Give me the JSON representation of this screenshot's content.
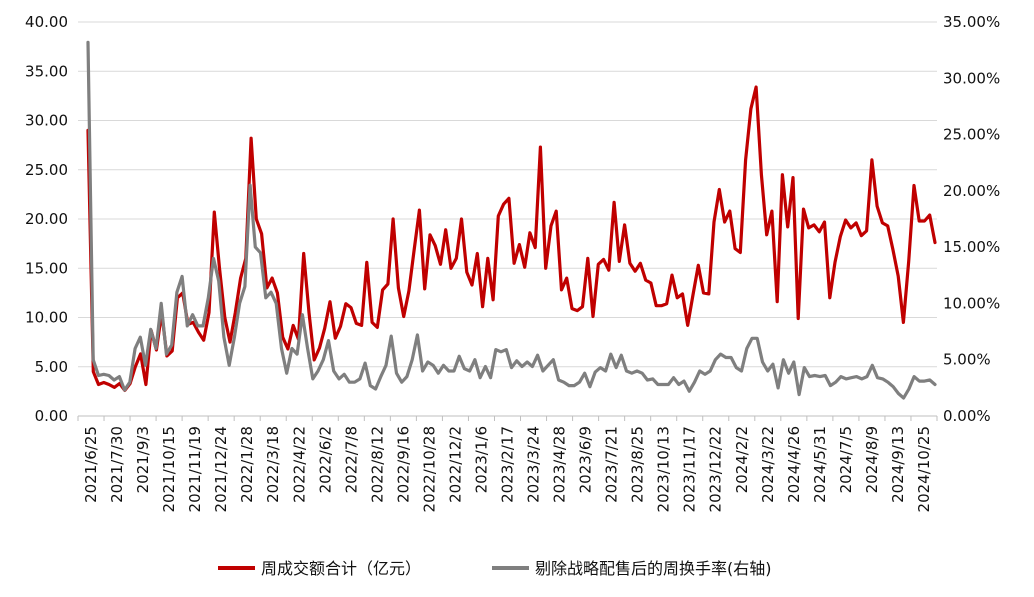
{
  "chart_data": {
    "type": "line",
    "x_tick_labels": [
      "2021/6/25",
      "2021/7/30",
      "2021/9/3",
      "2021/10/15",
      "2021/11/19",
      "2021/12/24",
      "2022/1/28",
      "2022/3/18",
      "2022/4/22",
      "2022/6/2",
      "2022/7/8",
      "2022/8/12",
      "2022/9/16",
      "2022/10/28",
      "2022/12/2",
      "2023/1/6",
      "2023/2/17",
      "2023/3/24",
      "2023/4/28",
      "2023/6/9",
      "2023/7/21",
      "2023/8/25",
      "2023/10/13",
      "2023/11/17",
      "2023/12/22",
      "2024/2/2",
      "2024/3/22",
      "2024/4/26",
      "2024/5/31",
      "2024/7/5",
      "2024/8/9",
      "2024/9/13",
      "2024/10/25"
    ],
    "left_axis": {
      "min": 0,
      "max": 40,
      "step": 5,
      "tick_labels": [
        "0.00",
        "5.00",
        "10.00",
        "15.00",
        "20.00",
        "25.00",
        "30.00",
        "35.00",
        "40.00"
      ]
    },
    "right_axis": {
      "min": 0,
      "max": 35,
      "step": 5,
      "tick_labels": [
        "0.00%",
        "5.00%",
        "10.00%",
        "15.00%",
        "20.00%",
        "25.00%",
        "30.00%",
        "35.00%"
      ]
    },
    "grid": true,
    "legend_position": "bottom",
    "series": [
      {
        "name": "周成交额合计（亿元）",
        "axis": "left",
        "color": "#C00000",
        "values": [
          29,
          4.5,
          3.2,
          3.4,
          3.2,
          2.9,
          3.3,
          2.6,
          3.3,
          5,
          6.3,
          3.2,
          8.7,
          6.7,
          10.5,
          6.1,
          6.6,
          12,
          12.5,
          9.3,
          9.5,
          8.5,
          7.7,
          10.5,
          20.7,
          15,
          10,
          7.5,
          10.5,
          14,
          16,
          28.2,
          20,
          18.5,
          13,
          14,
          12.5,
          8,
          6.8,
          9.2,
          7.8,
          16.5,
          10.5,
          5.7,
          6.9,
          8.9,
          11.6,
          7.9,
          9.1,
          11.4,
          11,
          9.4,
          9.2,
          15.6,
          9.5,
          9,
          12.8,
          13.4,
          20,
          13,
          10.1,
          12.7,
          16.9,
          20.9,
          12.9,
          18.4,
          17.3,
          15.4,
          18.9,
          15,
          16,
          20,
          14.6,
          13.3,
          16.5,
          11.1,
          16,
          11.8,
          20.3,
          21.5,
          22.1,
          15.5,
          17.4,
          15.1,
          18.6,
          17.1,
          27.3,
          15,
          19.3,
          20.8,
          12.8,
          14,
          10.9,
          10.7,
          11.1,
          16,
          10.1,
          15.4,
          15.9,
          14.8,
          21.7,
          15.7,
          19.4,
          15.5,
          14.7,
          15.5,
          13.8,
          13.5,
          11.2,
          11.2,
          11.4,
          14.3,
          12,
          12.4,
          9.2,
          12.3,
          15.3,
          12.5,
          12.4,
          19.7,
          23,
          19.7,
          20.8,
          17,
          16.6,
          26,
          31.2,
          33.4,
          24.5,
          18.4,
          20.8,
          11.6,
          24.5,
          19.2,
          24.2,
          9.9,
          21,
          19.1,
          19.4,
          18.7,
          19.7,
          12,
          15.6,
          18.2,
          19.9,
          19.1,
          19.6,
          18.3,
          18.8,
          26,
          21.3,
          19.6,
          19.3,
          16.9,
          14.2,
          9.5,
          15.7,
          23.4,
          19.8,
          19.8,
          20.4,
          17.6
        ]
      },
      {
        "name": "剔除战略配售后的周换手率(右轴)",
        "axis": "right",
        "color": "#7F7F7F",
        "values": [
          33.2,
          5,
          3.6,
          3.7,
          3.6,
          3.2,
          3.5,
          2.3,
          3,
          6,
          7,
          4.5,
          7.7,
          6,
          10,
          5.5,
          6.3,
          11,
          12.4,
          8,
          9,
          8,
          8,
          10.5,
          14,
          12,
          7,
          4.5,
          7,
          10,
          11.5,
          20.5,
          15,
          14.5,
          10.5,
          11,
          10,
          6,
          3.8,
          6,
          5.5,
          9,
          6,
          3.3,
          4,
          5,
          6.7,
          4,
          3.3,
          3.7,
          3,
          3,
          3.3,
          4.7,
          2.7,
          2.4,
          3.5,
          4.5,
          7.1,
          3.8,
          3,
          3.5,
          5,
          7.2,
          4,
          4.8,
          4.5,
          3.8,
          4.5,
          4,
          4,
          5.3,
          4.2,
          4,
          5,
          3.4,
          4.4,
          3.4,
          5.9,
          5.7,
          5.9,
          4.3,
          4.9,
          4.4,
          4.8,
          4.4,
          5.4,
          4,
          4.5,
          5,
          3.2,
          3,
          2.7,
          2.7,
          3,
          3.8,
          2.6,
          3.9,
          4.3,
          4,
          5.5,
          4.3,
          5.4,
          4,
          3.8,
          4,
          3.8,
          3.2,
          3.3,
          2.8,
          2.8,
          2.8,
          3.4,
          2.8,
          3.1,
          2.2,
          3,
          4,
          3.7,
          4,
          5,
          5.5,
          5.2,
          5.2,
          4.3,
          4,
          6,
          6.9,
          6.9,
          4.8,
          4,
          4.6,
          2.5,
          5,
          3.8,
          4.8,
          1.9,
          4.3,
          3.5,
          3.6,
          3.5,
          3.6,
          2.7,
          3,
          3.5,
          3.3,
          3.4,
          3.5,
          3.3,
          3.5,
          4.5,
          3.4,
          3.3,
          3,
          2.6,
          2,
          1.6,
          2.4,
          3.5,
          3.1,
          3.1,
          3.2,
          2.8
        ]
      }
    ]
  }
}
